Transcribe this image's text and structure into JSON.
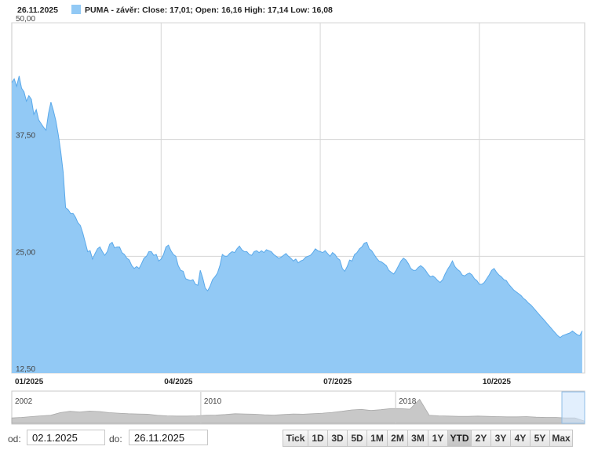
{
  "header": {
    "date": "26.11.2025",
    "legend": "PUMA - závěr: Close: 17,01; Open: 16,16 High: 17,14 Low: 16,08"
  },
  "colors": {
    "area": "#92c9f5",
    "line": "#5aa9ea",
    "navigator": "#c8c8c8",
    "grid": "#d6d6d6"
  },
  "chart_data": {
    "type": "area",
    "ylim": [
      12.5,
      50
    ],
    "yticks": [
      "50,00",
      "37,50",
      "25,00",
      "12,50"
    ],
    "xlim": [
      0,
      234
    ],
    "xticks": [
      {
        "label": "01/2025",
        "x": 0
      },
      {
        "label": "04/2025",
        "x": 61
      },
      {
        "label": "07/2025",
        "x": 126
      },
      {
        "label": "10/2025",
        "x": 191
      }
    ],
    "grid": true,
    "values": [
      43.6,
      44.0,
      43.2,
      44.3,
      43.0,
      42.6,
      41.6,
      42.2,
      41.8,
      40.2,
      40.7,
      39.6,
      39.2,
      38.8,
      38.5,
      40.3,
      41.5,
      40.6,
      39.5,
      38.0,
      36.2,
      34.0,
      30.2,
      30.0,
      29.6,
      29.6,
      29.2,
      28.6,
      28.3,
      27.5,
      26.5,
      25.5,
      25.6,
      24.7,
      25.3,
      25.8,
      26.0,
      25.5,
      25.1,
      25.5,
      26.3,
      26.5,
      25.9,
      26.0,
      26.0,
      25.4,
      25.2,
      24.8,
      24.6,
      24.0,
      23.7,
      23.9,
      23.7,
      24.2,
      24.8,
      25.0,
      25.5,
      25.5,
      25.1,
      25.2,
      24.5,
      24.7,
      25.2,
      26.0,
      26.2,
      25.6,
      25.2,
      25.0,
      24.0,
      23.5,
      23.4,
      22.6,
      22.5,
      22.4,
      22.5,
      22.0,
      21.9,
      23.5,
      22.7,
      21.6,
      21.3,
      21.8,
      22.5,
      22.8,
      23.2,
      24.0,
      25.2,
      25.0,
      25.0,
      25.3,
      25.5,
      25.4,
      25.8,
      26.1,
      25.7,
      25.5,
      25.5,
      25.2,
      25.1,
      25.5,
      25.6,
      25.4,
      25.6,
      25.4,
      25.7,
      25.6,
      25.5,
      25.2,
      25.0,
      24.8,
      24.9,
      25.1,
      25.3,
      25.0,
      24.8,
      24.5,
      24.7,
      24.3,
      24.5,
      24.6,
      24.9,
      25.0,
      25.1,
      25.4,
      25.8,
      25.6,
      25.5,
      25.4,
      25.6,
      25.3,
      25.0,
      25.4,
      25.2,
      24.8,
      24.6,
      23.7,
      23.4,
      23.9,
      24.6,
      24.5,
      25.2,
      25.4,
      25.8,
      26.0,
      26.4,
      26.5,
      25.8,
      25.6,
      25.2,
      24.8,
      24.5,
      24.4,
      24.2,
      24.0,
      23.5,
      23.3,
      23.1,
      23.5,
      24.0,
      24.5,
      24.8,
      24.6,
      24.2,
      23.7,
      23.5,
      23.5,
      23.8,
      24.0,
      23.8,
      23.5,
      23.1,
      22.8,
      22.9,
      22.7,
      22.4,
      22.2,
      22.5,
      23.1,
      23.6,
      24.0,
      24.5,
      23.9,
      23.6,
      23.4,
      23.0,
      22.9,
      23.1,
      23.2,
      23.0,
      22.6,
      22.4,
      22.0,
      22.0,
      22.2,
      22.6,
      23.0,
      23.5,
      23.7,
      23.3,
      23.0,
      22.8,
      22.5,
      22.4,
      22.0,
      21.7,
      21.4,
      21.2,
      21.0,
      20.8,
      20.5,
      20.3,
      20.0,
      19.8,
      19.5,
      19.2,
      18.9,
      18.6,
      18.3,
      18.0,
      17.7,
      17.4,
      17.1,
      16.8,
      16.5,
      16.3,
      16.5,
      16.6,
      16.7,
      16.8,
      17.0,
      16.8,
      16.6,
      16.5,
      17.01
    ],
    "navigator": {
      "labels": [
        {
          "label": "2002",
          "x": 0
        },
        {
          "label": "2010",
          "x": 0.33
        },
        {
          "label": "2018",
          "x": 0.67
        }
      ],
      "values": [
        0.2,
        0.22,
        0.25,
        0.28,
        0.3,
        0.4,
        0.45,
        0.42,
        0.46,
        0.44,
        0.4,
        0.38,
        0.36,
        0.35,
        0.34,
        0.3,
        0.28,
        0.27,
        0.27,
        0.28,
        0.3,
        0.31,
        0.33,
        0.36,
        0.35,
        0.34,
        0.32,
        0.31,
        0.33,
        0.35,
        0.34,
        0.36,
        0.38,
        0.41,
        0.45,
        0.5,
        0.52,
        0.48,
        0.51,
        0.55,
        0.55,
        0.53,
        0.9,
        0.3,
        0.28,
        0.27,
        0.26,
        0.26,
        0.27,
        0.26,
        0.25,
        0.24,
        0.24,
        0.25,
        0.23,
        0.22,
        0.22,
        0.2,
        0.2,
        0.08
      ]
    }
  },
  "controls": {
    "from_label": "od:",
    "from_value": "02.1.2025",
    "to_label": "do:",
    "to_value": "26.11.2025",
    "ranges": [
      {
        "label": "Tick",
        "active": false
      },
      {
        "label": "1D",
        "active": false
      },
      {
        "label": "3D",
        "active": false
      },
      {
        "label": "5D",
        "active": false
      },
      {
        "label": "1M",
        "active": false
      },
      {
        "label": "2M",
        "active": false
      },
      {
        "label": "3M",
        "active": false
      },
      {
        "label": "1Y",
        "active": false
      },
      {
        "label": "YTD",
        "active": true
      },
      {
        "label": "2Y",
        "active": false
      },
      {
        "label": "3Y",
        "active": false
      },
      {
        "label": "4Y",
        "active": false
      },
      {
        "label": "5Y",
        "active": false
      },
      {
        "label": "Max",
        "active": false
      }
    ]
  }
}
